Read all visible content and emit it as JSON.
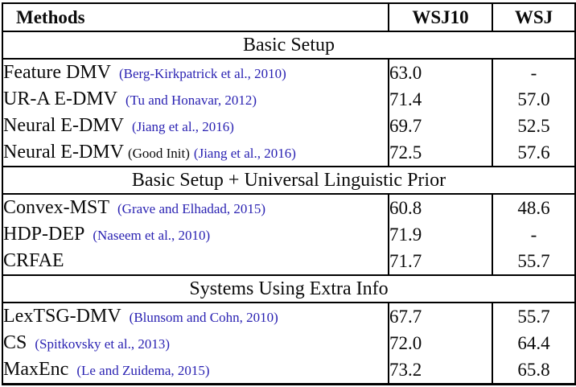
{
  "colors": {
    "citation_blue": "#2a22b2",
    "text_black": "#0b0b0b",
    "border_black": "#000000",
    "background": "#ffffff"
  },
  "table": {
    "columns": [
      "Methods",
      "WSJ10",
      "WSJ"
    ],
    "sections": [
      {
        "title": "Basic Setup",
        "rows": [
          {
            "method": "Feature DMV",
            "note": "",
            "citation": "(Berg-Kirkpatrick et al., 2010)",
            "wsj10": "63.0",
            "wsj": "-"
          },
          {
            "method": "UR-A E-DMV",
            "note": "",
            "citation": "(Tu and Honavar, 2012)",
            "wsj10": "71.4",
            "wsj": "57.0"
          },
          {
            "method": "Neural E-DMV",
            "note": "",
            "citation": "(Jiang et al., 2016)",
            "wsj10": "69.7",
            "wsj": "52.5"
          },
          {
            "method": "Neural E-DMV",
            "note": "(Good Init)",
            "citation": "(Jiang et al., 2016)",
            "wsj10": "72.5",
            "wsj": "57.6"
          }
        ]
      },
      {
        "title": "Basic Setup + Universal Linguistic Prior",
        "rows": [
          {
            "method": "Convex-MST",
            "note": "",
            "citation": "(Grave and Elhadad, 2015)",
            "wsj10": "60.8",
            "wsj": "48.6"
          },
          {
            "method": "HDP-DEP",
            "note": "",
            "citation": "(Naseem et al., 2010)",
            "wsj10": "71.9",
            "wsj": "-"
          },
          {
            "method": "CRFAE",
            "note": "",
            "citation": "",
            "wsj10": "71.7",
            "wsj": "55.7"
          }
        ]
      },
      {
        "title": "Systems Using Extra Info",
        "rows": [
          {
            "method": "LexTSG-DMV",
            "note": "",
            "citation": "(Blunsom and Cohn, 2010)",
            "wsj10": "67.7",
            "wsj": "55.7"
          },
          {
            "method": "CS",
            "note": "",
            "citation": "(Spitkovsky et al., 2013)",
            "wsj10": "72.0",
            "wsj": "64.4"
          },
          {
            "method": "MaxEnc",
            "note": "",
            "citation": "(Le and Zuidema, 2015)",
            "wsj10": "73.2",
            "wsj": "65.8"
          }
        ]
      }
    ]
  }
}
